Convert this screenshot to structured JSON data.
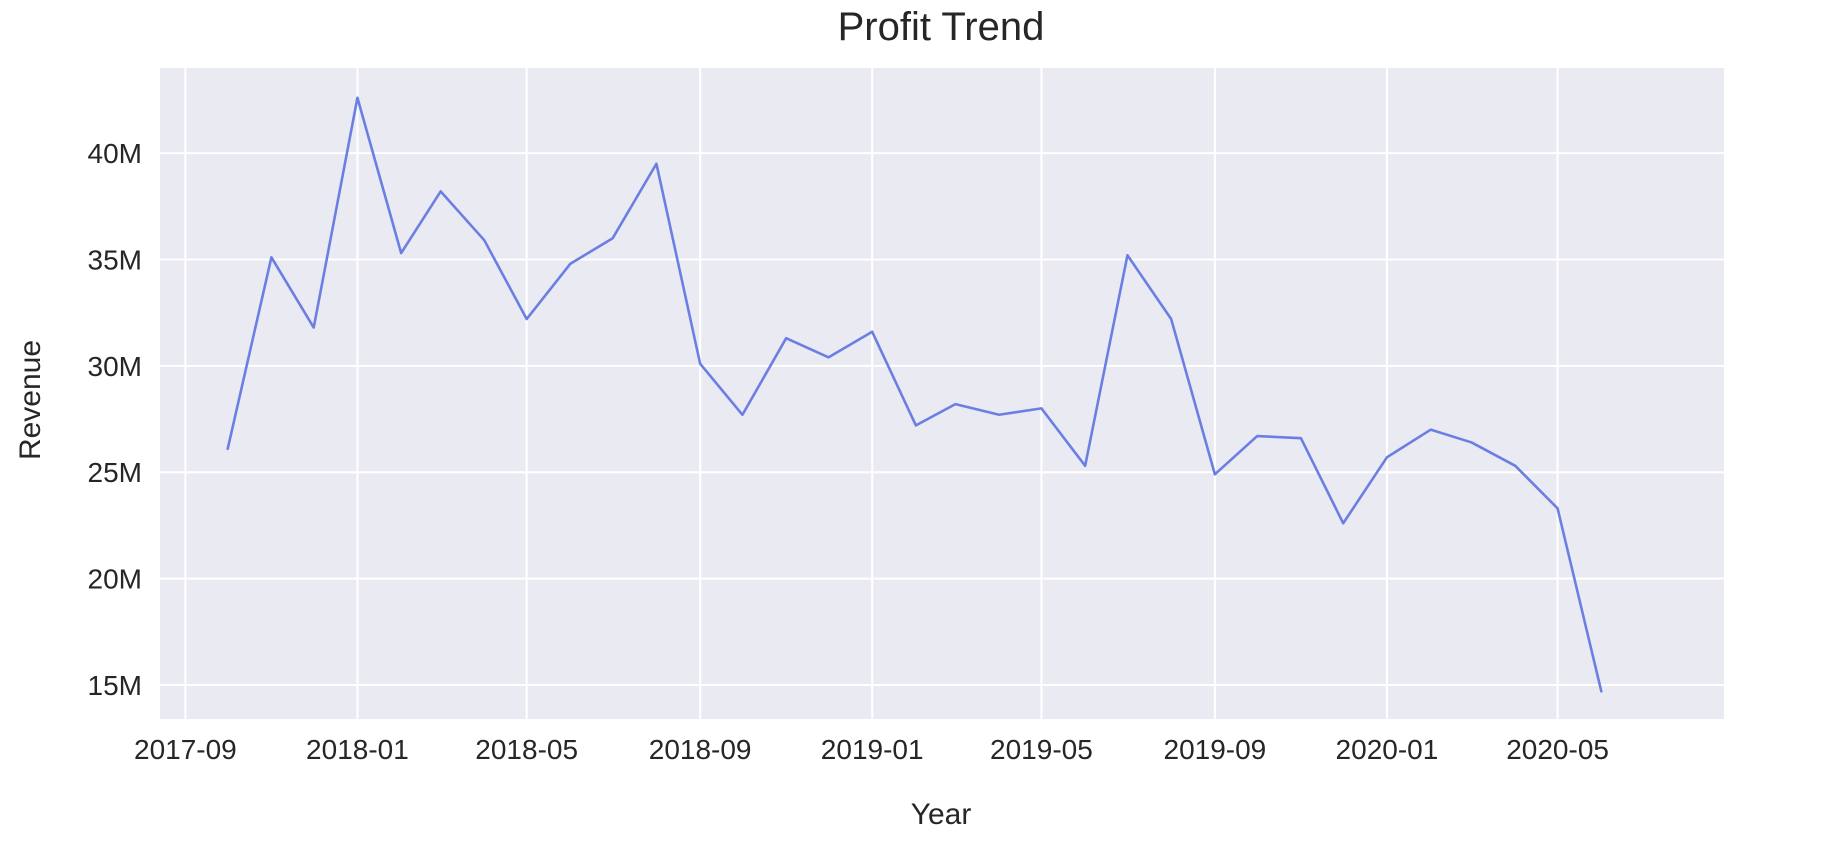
{
  "chart_data": {
    "type": "line",
    "title": "Profit Trend",
    "xlabel": "Year",
    "ylabel": "Revenue",
    "x_ticks": [
      "2017-09",
      "2018-01",
      "2018-05",
      "2018-09",
      "2019-01",
      "2019-05",
      "2019-09",
      "2020-01",
      "2020-05"
    ],
    "y_ticks": [
      {
        "value": 15000000,
        "label": "15M"
      },
      {
        "value": 20000000,
        "label": "20M"
      },
      {
        "value": 25000000,
        "label": "25M"
      },
      {
        "value": 30000000,
        "label": "30M"
      },
      {
        "value": 35000000,
        "label": "35M"
      },
      {
        "value": 40000000,
        "label": "40M"
      }
    ],
    "xlim": [
      "2017-08-14",
      "2020-08-27"
    ],
    "ylim": [
      13400000,
      44000000
    ],
    "grid": true,
    "colors": {
      "background": "#eaeaf2",
      "grid": "#ffffff",
      "line": "#6b7fe3"
    },
    "series": [
      {
        "x": [
          "2017-10-01",
          "2017-11-01",
          "2017-12-01",
          "2018-01-01",
          "2018-02-01",
          "2018-03-01",
          "2018-04-01",
          "2018-05-01",
          "2018-06-01",
          "2018-07-01",
          "2018-08-01",
          "2018-09-01",
          "2018-10-01",
          "2018-11-01",
          "2018-12-01",
          "2019-01-01",
          "2019-02-01",
          "2019-03-01",
          "2019-04-01",
          "2019-05-01",
          "2019-06-01",
          "2019-07-01",
          "2019-08-01",
          "2019-09-01",
          "2019-10-01",
          "2019-11-01",
          "2019-12-01",
          "2020-01-01",
          "2020-02-01",
          "2020-03-01",
          "2020-04-01",
          "2020-05-01",
          "2020-06-01"
        ],
        "values": [
          26100000,
          35100000,
          31800000,
          42600000,
          35300000,
          38200000,
          35900000,
          32200000,
          34800000,
          36000000,
          39500000,
          30100000,
          27700000,
          31300000,
          30400000,
          31600000,
          27200000,
          28200000,
          27700000,
          28000000,
          25300000,
          35200000,
          32200000,
          24900000,
          26700000,
          26600000,
          22600000,
          25700000,
          27000000,
          26400000,
          25300000,
          23300000,
          14700000
        ]
      }
    ]
  }
}
